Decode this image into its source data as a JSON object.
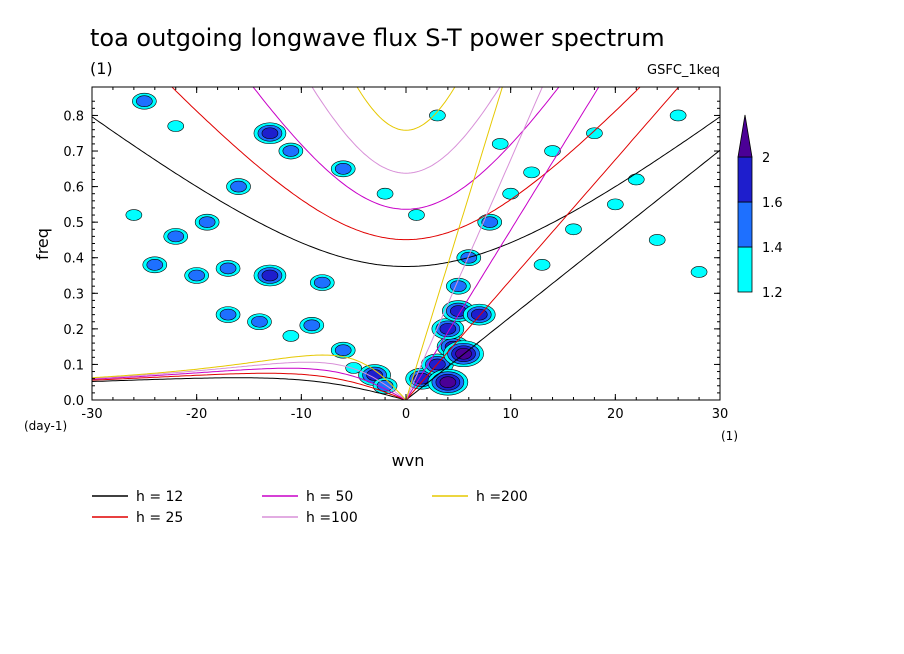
{
  "chart_data": {
    "type": "heatmap",
    "title": "toa outgoing longwave flux S-T power spectrum",
    "subtitle": "(1)",
    "source_label": "GSFC_1keq",
    "xlabel": "wvn",
    "ylabel": "freq",
    "x_unit": "(1)",
    "y_unit": "(day-1)",
    "xlim": [
      -30,
      30
    ],
    "ylim": [
      0,
      0.88
    ],
    "x_ticks": [
      "-30",
      "-20",
      "-10",
      "0",
      "10",
      "20",
      "30"
    ],
    "y_ticks": [
      "0.0",
      "0.1",
      "0.2",
      "0.3",
      "0.4",
      "0.5",
      "0.6",
      "0.7",
      "0.8"
    ],
    "colorbar": {
      "levels": [
        "1.2",
        "1.4",
        "1.6",
        "2"
      ],
      "colors": [
        "#00ffff",
        "#1e70ff",
        "#1e1ecd",
        "#4b0096"
      ]
    },
    "dispersion_curves": [
      {
        "label": "h = 12",
        "h": 12,
        "color": "#000000"
      },
      {
        "label": "h = 25",
        "h": 25,
        "color": "#e00000"
      },
      {
        "label": "h = 50",
        "h": 50,
        "color": "#c800c8"
      },
      {
        "label": "h =100",
        "h": 100,
        "color": "#d890d8"
      },
      {
        "label": "h =200",
        "h": 200,
        "color": "#e6c800"
      }
    ],
    "power_blobs": [
      {
        "x": -25,
        "y": 0.84,
        "level": 2
      },
      {
        "x": -22,
        "y": 0.77,
        "level": 1
      },
      {
        "x": -13,
        "y": 0.75,
        "level": 3
      },
      {
        "x": -11,
        "y": 0.7,
        "level": 2
      },
      {
        "x": -6,
        "y": 0.65,
        "level": 2
      },
      {
        "x": -16,
        "y": 0.6,
        "level": 2
      },
      {
        "x": -26,
        "y": 0.52,
        "level": 1
      },
      {
        "x": -22,
        "y": 0.46,
        "level": 2
      },
      {
        "x": -19,
        "y": 0.5,
        "level": 2
      },
      {
        "x": -24,
        "y": 0.38,
        "level": 2
      },
      {
        "x": -20,
        "y": 0.35,
        "level": 2
      },
      {
        "x": -17,
        "y": 0.37,
        "level": 2
      },
      {
        "x": -13,
        "y": 0.35,
        "level": 3
      },
      {
        "x": -8,
        "y": 0.33,
        "level": 2
      },
      {
        "x": -17,
        "y": 0.24,
        "level": 2
      },
      {
        "x": -14,
        "y": 0.22,
        "level": 2
      },
      {
        "x": -9,
        "y": 0.21,
        "level": 2
      },
      {
        "x": -11,
        "y": 0.18,
        "level": 1
      },
      {
        "x": -6,
        "y": 0.14,
        "level": 2
      },
      {
        "x": -3,
        "y": 0.07,
        "level": 3
      },
      {
        "x": -2,
        "y": 0.04,
        "level": 2
      },
      {
        "x": -5,
        "y": 0.09,
        "level": 1
      },
      {
        "x": 1.5,
        "y": 0.06,
        "level": 3
      },
      {
        "x": 3,
        "y": 0.1,
        "level": 3
      },
      {
        "x": 4.5,
        "y": 0.15,
        "level": 3
      },
      {
        "x": 5.5,
        "y": 0.13,
        "level": 4
      },
      {
        "x": 4,
        "y": 0.2,
        "level": 3
      },
      {
        "x": 5,
        "y": 0.25,
        "level": 3
      },
      {
        "x": 7,
        "y": 0.24,
        "level": 3
      },
      {
        "x": 5,
        "y": 0.32,
        "level": 2
      },
      {
        "x": 6,
        "y": 0.4,
        "level": 2
      },
      {
        "x": 8,
        "y": 0.5,
        "level": 2
      },
      {
        "x": 4,
        "y": 0.05,
        "level": 4
      },
      {
        "x": 10,
        "y": 0.58,
        "level": 1
      },
      {
        "x": 12,
        "y": 0.64,
        "level": 1
      },
      {
        "x": 14,
        "y": 0.7,
        "level": 1
      },
      {
        "x": 18,
        "y": 0.75,
        "level": 1
      },
      {
        "x": 22,
        "y": 0.62,
        "level": 1
      },
      {
        "x": 16,
        "y": 0.48,
        "level": 1
      },
      {
        "x": 20,
        "y": 0.55,
        "level": 1
      },
      {
        "x": 3,
        "y": 0.8,
        "level": 1
      },
      {
        "x": 9,
        "y": 0.72,
        "level": 1
      },
      {
        "x": -2,
        "y": 0.58,
        "level": 1
      },
      {
        "x": 1,
        "y": 0.52,
        "level": 1
      },
      {
        "x": 26,
        "y": 0.8,
        "level": 1
      },
      {
        "x": 24,
        "y": 0.45,
        "level": 1
      },
      {
        "x": 28,
        "y": 0.36,
        "level": 1
      },
      {
        "x": 13,
        "y": 0.38,
        "level": 1
      }
    ]
  }
}
